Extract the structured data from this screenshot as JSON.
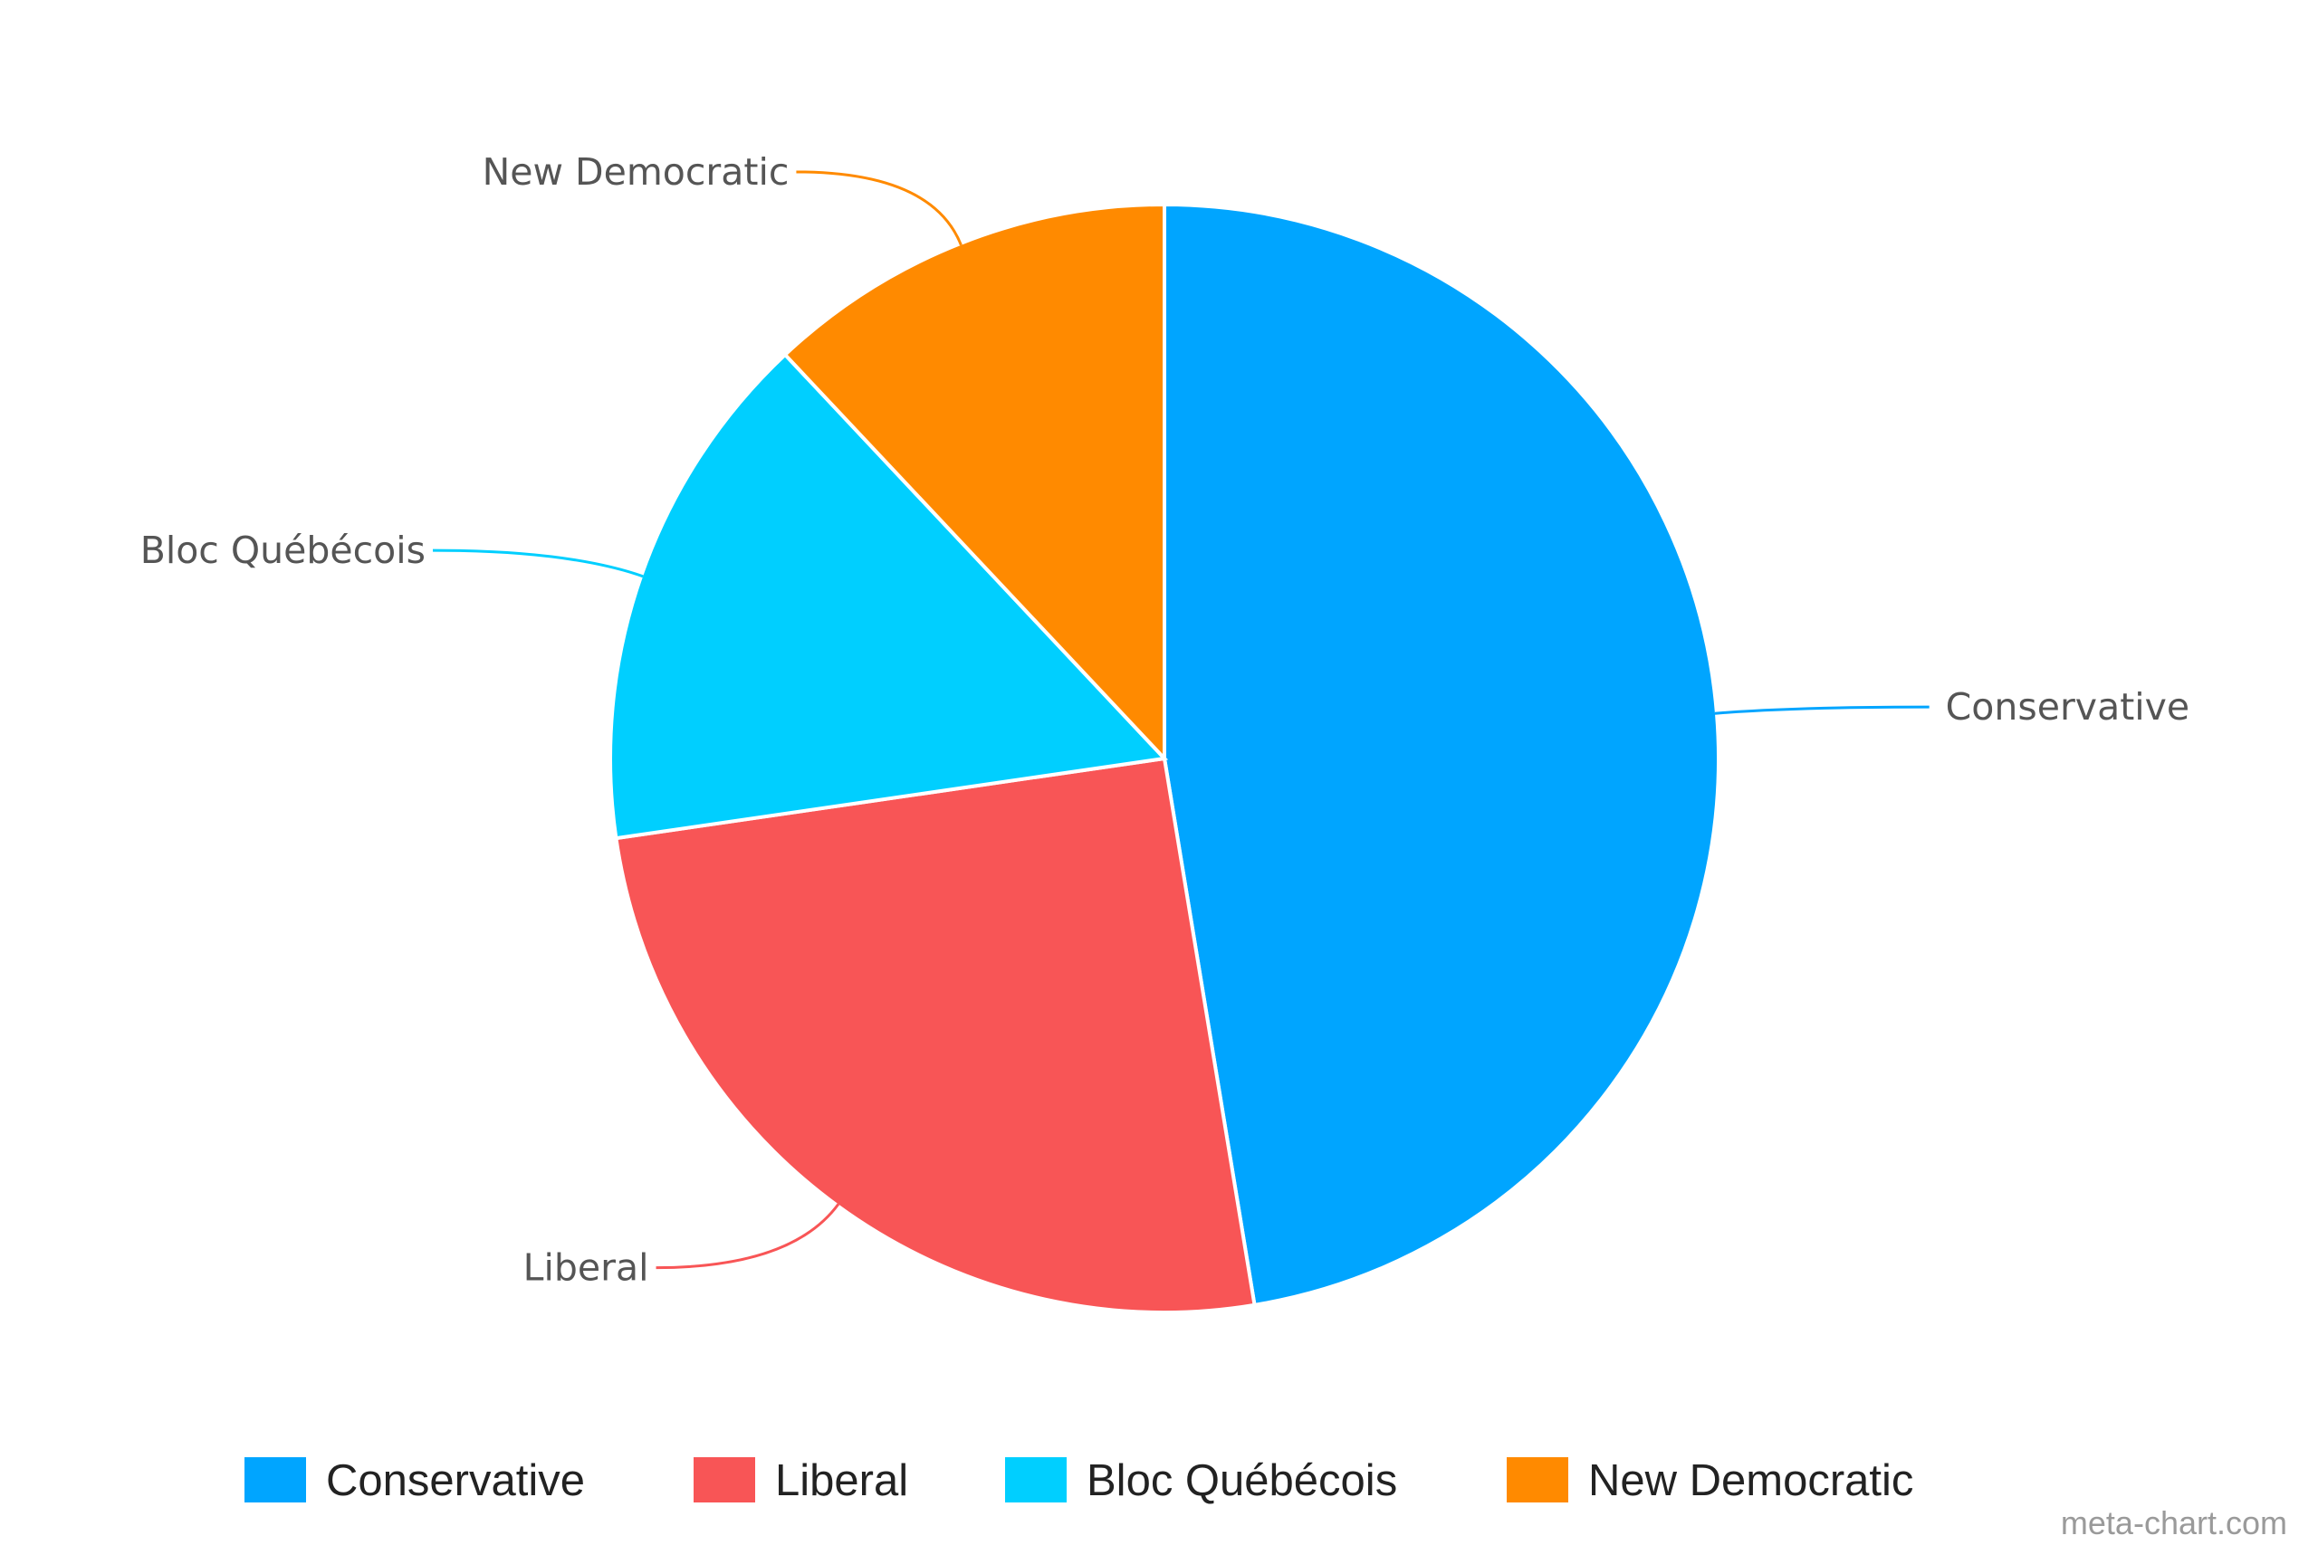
{
  "chart_data": {
    "type": "pie",
    "title": "",
    "slices": [
      {
        "label": "Conservative",
        "value": 47.4,
        "color": "#00A5FF"
      },
      {
        "label": "Liberal",
        "value": 25.3,
        "color": "#F85556"
      },
      {
        "label": "Bloc Québécois",
        "value": 15.3,
        "color": "#00CFFF"
      },
      {
        "label": "New Democratic",
        "value": 12.0,
        "color": "#FF8A00"
      }
    ],
    "legend": {
      "placement": "bottom",
      "entries": [
        "Conservative",
        "Liberal",
        "Bloc Québécois",
        "New Democratic"
      ]
    }
  },
  "footer": {
    "credit": "meta-chart.com"
  }
}
